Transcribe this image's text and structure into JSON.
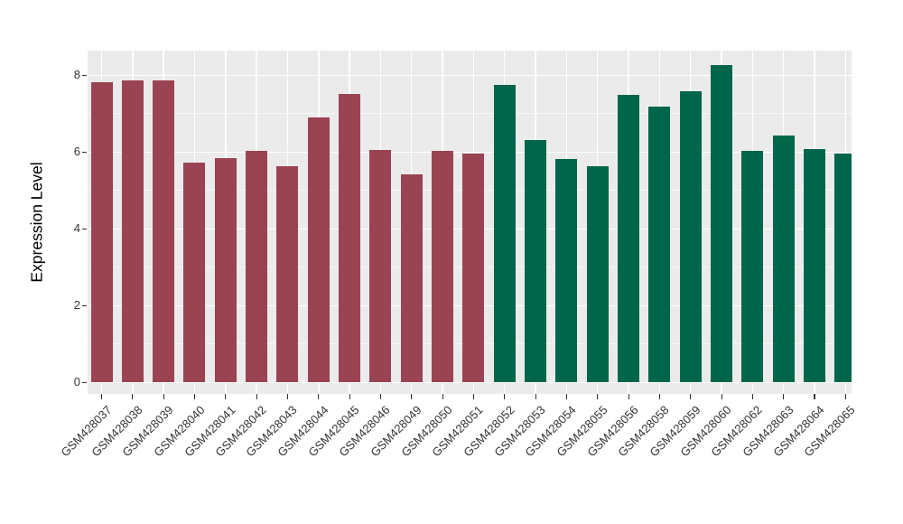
{
  "chart_data": {
    "type": "bar",
    "title": "",
    "xlabel": "",
    "ylabel": "Expression Level",
    "ylim": [
      0,
      8.6
    ],
    "yticks": [
      0,
      2,
      4,
      6,
      8
    ],
    "minor_yticks": [
      1,
      3,
      5,
      7
    ],
    "grid": "white major and minor gridlines on gray panel (ggplot style)",
    "legend_position": "none",
    "categories": [
      "GSM428037",
      "GSM428038",
      "GSM428039",
      "GSM428040",
      "GSM428041",
      "GSM428042",
      "GSM428043",
      "GSM428044",
      "GSM428045",
      "GSM428046",
      "GSM428049",
      "GSM428050",
      "GSM428051",
      "GSM428052",
      "GSM428053",
      "GSM428054",
      "GSM428055",
      "GSM428056",
      "GSM428058",
      "GSM428059",
      "GSM428060",
      "GSM428062",
      "GSM428063",
      "GSM428064",
      "GSM428065"
    ],
    "values": [
      7.82,
      7.86,
      7.86,
      5.73,
      5.85,
      6.03,
      5.63,
      6.9,
      7.51,
      6.06,
      5.41,
      6.03,
      5.95,
      7.74,
      6.32,
      5.82,
      5.63,
      7.5,
      7.19,
      7.58,
      8.26,
      6.03,
      6.43,
      6.07,
      5.95
    ],
    "bar_groups": [
      "g1",
      "g1",
      "g1",
      "g1",
      "g1",
      "g1",
      "g1",
      "g1",
      "g1",
      "g1",
      "g1",
      "g1",
      "g1",
      "g2",
      "g2",
      "g2",
      "g2",
      "g2",
      "g2",
      "g2",
      "g2",
      "g2",
      "g2",
      "g2",
      "g2"
    ],
    "group_colors": {
      "g1": "#9A4352",
      "g2": "#00664A"
    },
    "panel_background": "#EBEBEB",
    "grid_color": "#FFFFFF",
    "axis_text_color": "#333333"
  }
}
